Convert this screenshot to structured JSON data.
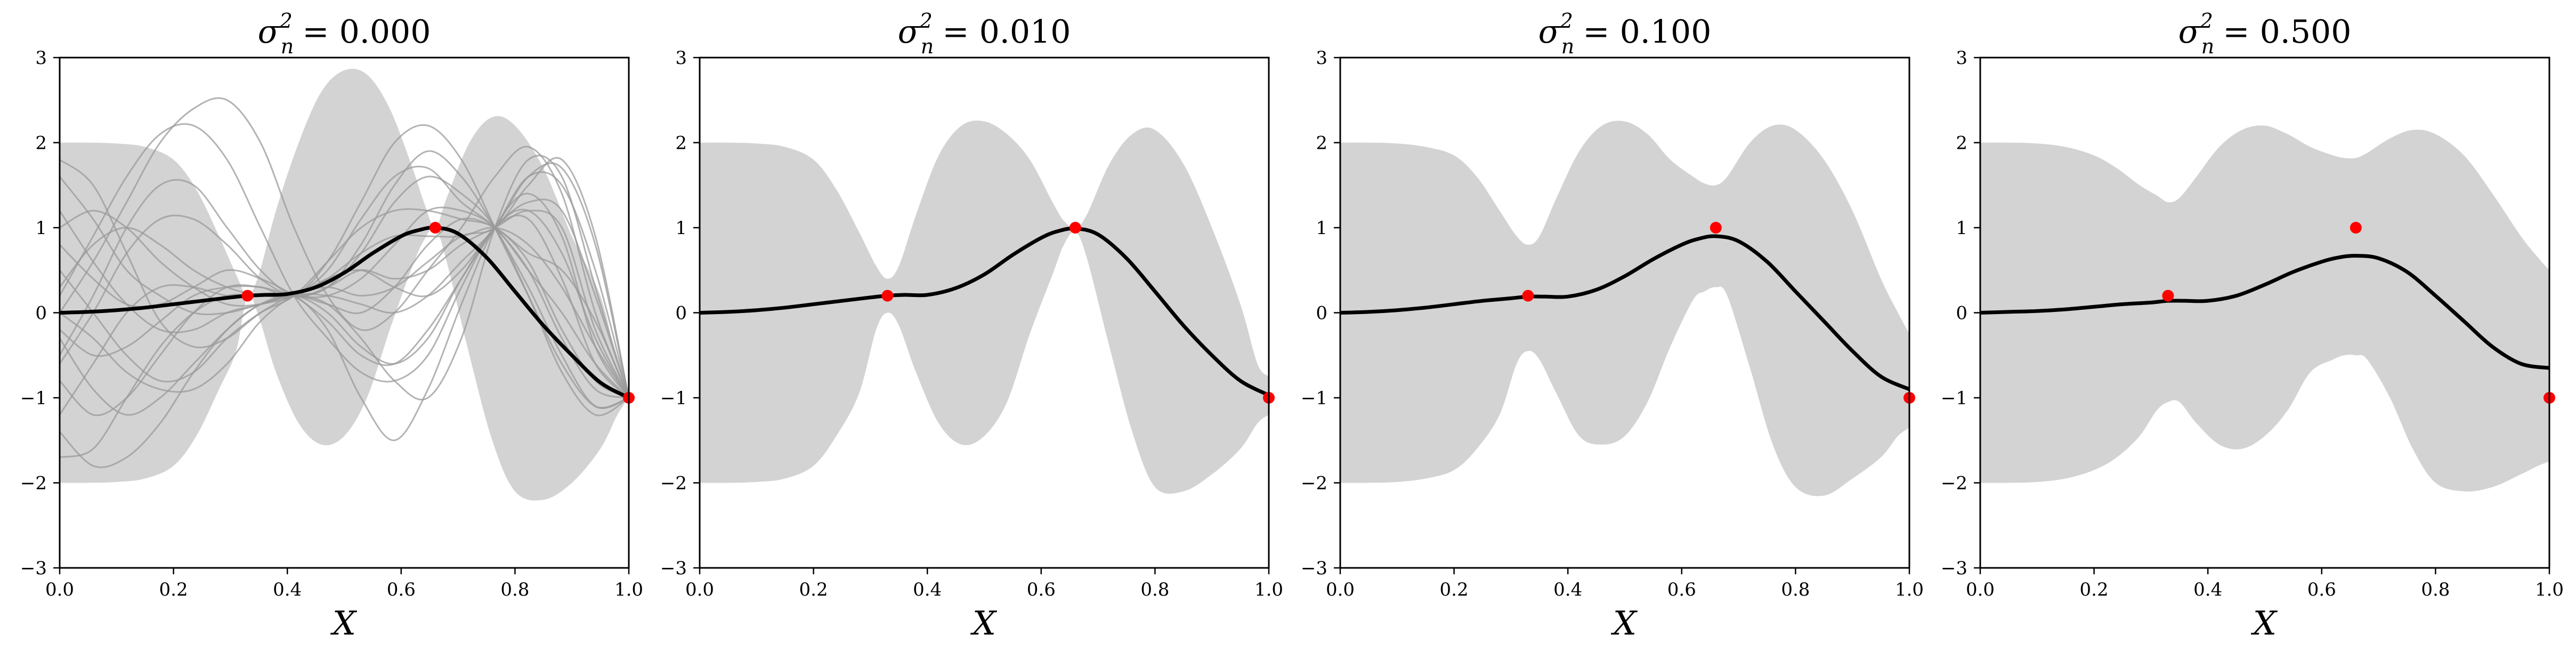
{
  "chart_data": [
    {
      "type": "line",
      "title_prefix": "σ",
      "title_sub": "n",
      "title_sup": "2",
      "title_value": "= 0.000",
      "xlabel": "X",
      "xlim": [
        0,
        1
      ],
      "ylim": [
        -3,
        3
      ],
      "xticks": [
        "0.0",
        "0.2",
        "0.4",
        "0.6",
        "0.8",
        "1.0"
      ],
      "yticks": [
        "−3",
        "−2",
        "−1",
        "0",
        "1",
        "2",
        "3"
      ],
      "observations": {
        "x": [
          0.33,
          0.66,
          1.0
        ],
        "y": [
          0.2,
          1.0,
          -1.0
        ]
      },
      "mean": {
        "x": [
          0,
          0.05,
          0.1,
          0.15,
          0.2,
          0.25,
          0.3,
          0.33,
          0.36,
          0.4,
          0.45,
          0.5,
          0.55,
          0.6,
          0.63,
          0.66,
          0.7,
          0.75,
          0.8,
          0.85,
          0.9,
          0.95,
          1.0
        ],
        "y": [
          0,
          0.01,
          0.03,
          0.06,
          0.1,
          0.14,
          0.18,
          0.2,
          0.21,
          0.22,
          0.3,
          0.47,
          0.7,
          0.9,
          0.97,
          1.0,
          0.93,
          0.65,
          0.25,
          -0.15,
          -0.5,
          -0.82,
          -1.0
        ]
      },
      "band": {
        "x": [
          0,
          0.05,
          0.1,
          0.15,
          0.2,
          0.24,
          0.28,
          0.31,
          0.33,
          0.35,
          0.38,
          0.42,
          0.46,
          0.5,
          0.54,
          0.58,
          0.62,
          0.64,
          0.66,
          0.68,
          0.72,
          0.76,
          0.8,
          0.85,
          0.9,
          0.95,
          0.98,
          1.0
        ],
        "upper": [
          2.0,
          2.0,
          1.99,
          1.95,
          1.8,
          1.45,
          0.9,
          0.45,
          0.2,
          0.45,
          1.2,
          2.0,
          2.6,
          2.85,
          2.8,
          2.4,
          1.7,
          1.3,
          1.0,
          1.35,
          2.0,
          2.3,
          2.2,
          1.7,
          0.9,
          0.2,
          -0.6,
          -1.0
        ],
        "lower": [
          -2.0,
          -2.0,
          -1.99,
          -1.95,
          -1.8,
          -1.45,
          -0.9,
          -0.45,
          0.2,
          -0.05,
          -0.7,
          -1.3,
          -1.55,
          -1.45,
          -1.0,
          -0.2,
          0.55,
          0.85,
          1.0,
          0.6,
          -0.5,
          -1.5,
          -2.1,
          -2.2,
          -2.0,
          -1.6,
          -1.2,
          -1.0
        ]
      },
      "samples": [
        [
          0.0,
          0.6,
          1.3,
          2.0,
          2.4,
          2.5,
          2.0,
          1.0,
          0.2,
          -0.2,
          0.0,
          0.5,
          1.0,
          1.6,
          1.95,
          1.4,
          0.0,
          -1.0
        ],
        [
          -1.4,
          -1.8,
          -1.7,
          -1.3,
          -0.7,
          -0.2,
          0.1,
          0.2,
          0.0,
          -0.4,
          -0.6,
          -0.3,
          0.4,
          1.0,
          1.6,
          1.5,
          0.5,
          -1.0
        ],
        [
          1.6,
          1.1,
          0.5,
          0.2,
          0.0,
          0.0,
          0.1,
          0.2,
          0.5,
          1.1,
          1.6,
          1.7,
          1.3,
          1.0,
          0.5,
          -0.3,
          -0.9,
          -1.0
        ],
        [
          -0.5,
          0.2,
          1.0,
          1.5,
          1.5,
          1.0,
          0.5,
          0.2,
          0.3,
          0.5,
          0.4,
          0.5,
          0.8,
          1.0,
          1.2,
          1.0,
          -0.2,
          -1.0
        ],
        [
          0.5,
          0.0,
          -0.5,
          -0.8,
          -0.7,
          -0.3,
          0.0,
          0.2,
          0.6,
          1.0,
          1.2,
          1.2,
          1.1,
          1.0,
          0.6,
          -0.2,
          -0.8,
          -1.0
        ],
        [
          1.0,
          1.2,
          1.0,
          0.6,
          0.3,
          0.1,
          0.1,
          0.2,
          0.1,
          -0.3,
          -0.8,
          -1.0,
          -0.3,
          1.0,
          1.8,
          1.6,
          0.3,
          -1.0
        ],
        [
          -0.8,
          -1.2,
          -1.0,
          -0.5,
          0.0,
          0.3,
          0.3,
          0.2,
          0.2,
          0.4,
          0.8,
          1.2,
          1.2,
          1.0,
          0.5,
          0.0,
          -0.6,
          -1.0
        ],
        [
          0.3,
          0.8,
          1.0,
          0.8,
          0.5,
          0.3,
          0.2,
          0.2,
          -0.2,
          -1.0,
          -1.5,
          -0.9,
          0.1,
          1.0,
          1.4,
          0.9,
          -0.4,
          -1.0
        ],
        [
          -0.2,
          -0.5,
          -0.4,
          -0.1,
          0.2,
          0.3,
          0.3,
          0.2,
          0.6,
          1.3,
          2.0,
          2.2,
          1.8,
          1.0,
          0.2,
          -0.6,
          -1.1,
          -1.0
        ],
        [
          1.8,
          1.5,
          0.7,
          -0.1,
          -0.4,
          -0.3,
          0.0,
          0.2,
          0.2,
          0.1,
          0.0,
          0.2,
          0.6,
          1.0,
          1.6,
          1.7,
          0.8,
          -1.0
        ],
        [
          -1.2,
          -0.6,
          0.0,
          0.3,
          0.3,
          0.2,
          0.2,
          0.2,
          0.4,
          0.7,
          0.9,
          0.9,
          0.9,
          1.0,
          0.8,
          0.3,
          -0.4,
          -1.0
        ],
        [
          0.0,
          -0.3,
          -0.7,
          -0.9,
          -0.9,
          -0.6,
          -0.1,
          0.2,
          0.3,
          0.2,
          0.3,
          0.6,
          0.9,
          1.0,
          1.5,
          1.8,
          0.9,
          -1.0
        ],
        [
          0.8,
          0.4,
          0.1,
          0.1,
          0.3,
          0.5,
          0.4,
          0.2,
          -0.1,
          -0.5,
          -0.6,
          -0.2,
          0.4,
          1.0,
          1.1,
          0.4,
          -0.6,
          -1.0
        ],
        [
          -0.6,
          0.0,
          0.7,
          1.1,
          1.1,
          0.8,
          0.4,
          0.2,
          0.3,
          0.7,
          1.3,
          1.6,
          1.4,
          1.0,
          0.2,
          -0.7,
          -1.2,
          -1.0
        ],
        [
          1.2,
          0.6,
          0.1,
          -0.2,
          -0.2,
          0.0,
          0.1,
          0.2,
          0.1,
          0.0,
          0.3,
          0.8,
          1.1,
          1.0,
          0.7,
          0.5,
          -0.1,
          -1.0
        ],
        [
          -1.7,
          -1.6,
          -1.0,
          -0.4,
          0.0,
          0.2,
          0.2,
          0.2,
          0.4,
          0.5,
          0.3,
          0.2,
          0.5,
          1.0,
          1.3,
          1.2,
          0.2,
          -1.0
        ],
        [
          0.2,
          0.9,
          1.6,
          2.1,
          2.2,
          1.8,
          1.0,
          0.2,
          -0.3,
          -0.7,
          -0.8,
          -0.5,
          0.3,
          1.0,
          1.2,
          0.7,
          -0.3,
          -1.0
        ],
        [
          -0.3,
          -0.9,
          -1.2,
          -1.0,
          -0.6,
          -0.2,
          0.1,
          0.2,
          0.3,
          0.8,
          1.5,
          1.9,
          1.6,
          1.0,
          0.3,
          -0.5,
          -1.1,
          -1.0
        ]
      ]
    },
    {
      "type": "line",
      "title_prefix": "σ",
      "title_sub": "n",
      "title_sup": "2",
      "title_value": "= 0.010",
      "xlabel": "X",
      "xlim": [
        0,
        1
      ],
      "ylim": [
        -3,
        3
      ],
      "xticks": [
        "0.0",
        "0.2",
        "0.4",
        "0.6",
        "0.8",
        "1.0"
      ],
      "yticks": [
        "−3",
        "−2",
        "−1",
        "0",
        "1",
        "2",
        "3"
      ],
      "observations": {
        "x": [
          0.33,
          0.66,
          1.0
        ],
        "y": [
          0.2,
          1.0,
          -1.0
        ]
      },
      "mean": {
        "x": [
          0,
          0.05,
          0.1,
          0.15,
          0.2,
          0.25,
          0.3,
          0.33,
          0.36,
          0.4,
          0.45,
          0.5,
          0.55,
          0.6,
          0.63,
          0.66,
          0.7,
          0.75,
          0.8,
          0.85,
          0.9,
          0.95,
          1.0
        ],
        "y": [
          0,
          0.01,
          0.03,
          0.06,
          0.1,
          0.14,
          0.18,
          0.2,
          0.21,
          0.21,
          0.29,
          0.45,
          0.68,
          0.88,
          0.96,
          0.99,
          0.92,
          0.64,
          0.25,
          -0.15,
          -0.5,
          -0.8,
          -0.97
        ]
      },
      "band": {
        "x": [
          0,
          0.05,
          0.1,
          0.15,
          0.2,
          0.24,
          0.28,
          0.31,
          0.33,
          0.35,
          0.38,
          0.42,
          0.46,
          0.5,
          0.54,
          0.58,
          0.62,
          0.64,
          0.66,
          0.68,
          0.72,
          0.76,
          0.8,
          0.85,
          0.9,
          0.95,
          0.98,
          1.0
        ],
        "upper": [
          2.0,
          2.0,
          1.99,
          1.95,
          1.8,
          1.45,
          0.95,
          0.55,
          0.4,
          0.55,
          1.15,
          1.85,
          2.2,
          2.25,
          2.1,
          1.8,
          1.3,
          1.08,
          1.0,
          1.15,
          1.75,
          2.1,
          2.15,
          1.75,
          1.0,
          0.1,
          -0.6,
          -0.75
        ],
        "lower": [
          -2.0,
          -2.0,
          -1.99,
          -1.95,
          -1.8,
          -1.45,
          -0.95,
          -0.2,
          0.0,
          -0.15,
          -0.7,
          -1.3,
          -1.55,
          -1.45,
          -1.05,
          -0.25,
          0.45,
          0.8,
          0.95,
          0.65,
          -0.4,
          -1.4,
          -2.05,
          -2.1,
          -1.9,
          -1.6,
          -1.3,
          -1.2
        ]
      }
    },
    {
      "type": "line",
      "title_prefix": "σ",
      "title_sub": "n",
      "title_sup": "2",
      "title_value": "= 0.100",
      "xlabel": "X",
      "xlim": [
        0,
        1
      ],
      "ylim": [
        -3,
        3
      ],
      "xticks": [
        "0.0",
        "0.2",
        "0.4",
        "0.6",
        "0.8",
        "1.0"
      ],
      "yticks": [
        "−3",
        "−2",
        "−1",
        "0",
        "1",
        "2",
        "3"
      ],
      "observations": {
        "x": [
          0.33,
          0.66,
          1.0
        ],
        "y": [
          0.2,
          1.0,
          -1.0
        ]
      },
      "mean": {
        "x": [
          0,
          0.05,
          0.1,
          0.15,
          0.2,
          0.25,
          0.3,
          0.33,
          0.36,
          0.4,
          0.45,
          0.5,
          0.55,
          0.6,
          0.63,
          0.66,
          0.7,
          0.75,
          0.8,
          0.85,
          0.9,
          0.95,
          1.0
        ],
        "y": [
          0,
          0.01,
          0.03,
          0.06,
          0.1,
          0.14,
          0.17,
          0.19,
          0.19,
          0.19,
          0.27,
          0.43,
          0.63,
          0.8,
          0.87,
          0.9,
          0.84,
          0.6,
          0.25,
          -0.1,
          -0.45,
          -0.75,
          -0.9
        ]
      },
      "band": {
        "x": [
          0,
          0.05,
          0.1,
          0.15,
          0.2,
          0.24,
          0.28,
          0.31,
          0.33,
          0.35,
          0.38,
          0.42,
          0.46,
          0.5,
          0.54,
          0.58,
          0.62,
          0.64,
          0.66,
          0.68,
          0.72,
          0.76,
          0.8,
          0.85,
          0.9,
          0.95,
          0.98,
          1.0
        ],
        "upper": [
          2.0,
          2.0,
          1.99,
          1.95,
          1.85,
          1.6,
          1.2,
          0.9,
          0.8,
          0.9,
          1.35,
          1.9,
          2.2,
          2.25,
          2.1,
          1.8,
          1.6,
          1.52,
          1.5,
          1.6,
          2.0,
          2.2,
          2.15,
          1.8,
          1.2,
          0.4,
          0.0,
          -0.25
        ],
        "lower": [
          -2.0,
          -2.0,
          -1.99,
          -1.95,
          -1.85,
          -1.6,
          -1.2,
          -0.6,
          -0.45,
          -0.55,
          -0.95,
          -1.45,
          -1.55,
          -1.45,
          -1.05,
          -0.4,
          0.15,
          0.25,
          0.3,
          0.2,
          -0.65,
          -1.55,
          -2.05,
          -2.15,
          -1.95,
          -1.7,
          -1.45,
          -1.35
        ]
      }
    },
    {
      "type": "line",
      "title_prefix": "σ",
      "title_sub": "n",
      "title_sup": "2",
      "title_value": "= 0.500",
      "xlabel": "X",
      "xlim": [
        0,
        1
      ],
      "ylim": [
        -3,
        3
      ],
      "xticks": [
        "0.0",
        "0.2",
        "0.4",
        "0.6",
        "0.8",
        "1.0"
      ],
      "yticks": [
        "−3",
        "−2",
        "−1",
        "0",
        "1",
        "2",
        "3"
      ],
      "observations": {
        "x": [
          0.33,
          0.66,
          1.0
        ],
        "y": [
          0.2,
          1.0,
          -1.0
        ]
      },
      "mean": {
        "x": [
          0,
          0.05,
          0.1,
          0.15,
          0.2,
          0.25,
          0.3,
          0.33,
          0.36,
          0.4,
          0.45,
          0.5,
          0.55,
          0.6,
          0.63,
          0.66,
          0.7,
          0.75,
          0.8,
          0.85,
          0.9,
          0.95,
          1.0
        ],
        "y": [
          0,
          0.01,
          0.02,
          0.04,
          0.07,
          0.1,
          0.12,
          0.14,
          0.14,
          0.14,
          0.2,
          0.33,
          0.48,
          0.6,
          0.65,
          0.67,
          0.64,
          0.48,
          0.2,
          -0.1,
          -0.4,
          -0.6,
          -0.65
        ]
      },
      "band": {
        "x": [
          0,
          0.05,
          0.1,
          0.15,
          0.2,
          0.24,
          0.28,
          0.31,
          0.33,
          0.35,
          0.38,
          0.42,
          0.46,
          0.5,
          0.54,
          0.58,
          0.62,
          0.64,
          0.66,
          0.68,
          0.72,
          0.76,
          0.8,
          0.85,
          0.9,
          0.95,
          0.98,
          1.0
        ],
        "upper": [
          2.0,
          2.0,
          1.99,
          1.95,
          1.85,
          1.7,
          1.5,
          1.38,
          1.3,
          1.35,
          1.6,
          1.95,
          2.15,
          2.2,
          2.1,
          1.95,
          1.85,
          1.82,
          1.82,
          1.88,
          2.05,
          2.15,
          2.1,
          1.85,
          1.4,
          0.9,
          0.65,
          0.5
        ],
        "lower": [
          -2.0,
          -2.0,
          -1.99,
          -1.95,
          -1.85,
          -1.7,
          -1.45,
          -1.15,
          -1.05,
          -1.05,
          -1.3,
          -1.55,
          -1.6,
          -1.45,
          -1.15,
          -0.7,
          -0.55,
          -0.5,
          -0.5,
          -0.55,
          -1.0,
          -1.6,
          -2.0,
          -2.1,
          -2.05,
          -1.9,
          -1.8,
          -1.75
        ]
      }
    }
  ]
}
